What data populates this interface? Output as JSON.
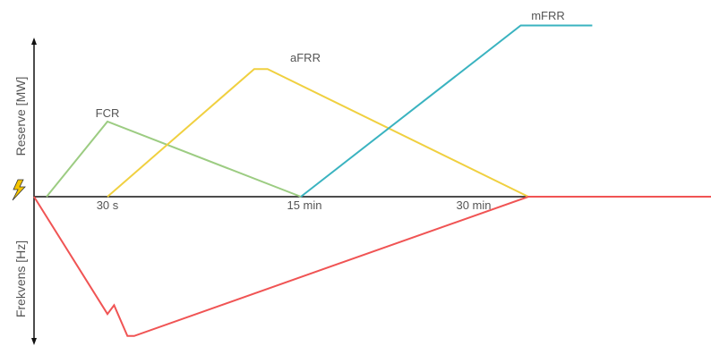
{
  "chart_data": {
    "type": "line",
    "xlabel": "",
    "x_ticks": [
      "30 s",
      "15 min",
      "30 min"
    ],
    "upper_panel": {
      "ylabel": "Reserve [MW]",
      "series": [
        {
          "name": "FCR",
          "color": "#9ccc82",
          "x": [
            0,
            30,
            900
          ],
          "y": [
            0,
            100,
            0
          ]
        },
        {
          "name": "aFRR",
          "color": "#f0d040",
          "x": [
            30,
            690,
            750,
            1800
          ],
          "y": [
            0,
            170,
            170,
            0
          ]
        },
        {
          "name": "mFRR",
          "color": "#3ab3c0",
          "x": [
            900,
            1770,
            2010
          ],
          "y": [
            0,
            228,
            228
          ]
        }
      ]
    },
    "lower_panel": {
      "ylabel": "Frekvens [Hz]",
      "series": [
        {
          "name": "",
          "color": "#f05454",
          "x": [
            0,
            30,
            60,
            120,
            150,
            1800,
            2400
          ],
          "y": [
            0,
            -160,
            -148,
            -190,
            -190,
            0,
            0
          ]
        }
      ]
    },
    "grid": false,
    "legend": "none"
  },
  "icons": {
    "origin_marker": "lightning-bolt-icon",
    "bolt_color": "#f5c400"
  },
  "colors": {
    "axis": "#111111",
    "text": "#555555"
  }
}
